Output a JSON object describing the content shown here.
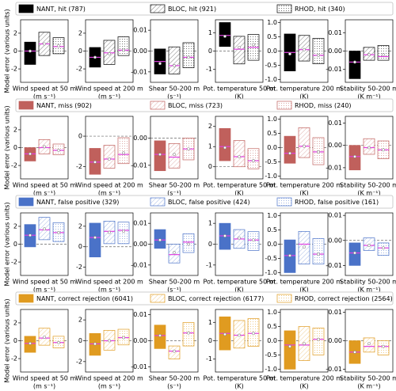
{
  "chart_data": [
    {
      "type": "box",
      "ylabel": "Model error (various units)",
      "zero_line": true,
      "series": [
        {
          "name": "NANT, hit (787)",
          "color": "#000000",
          "hatch": "solid"
        },
        {
          "name": "BLOC, hit (921)",
          "color": "#000000",
          "hatch": "lines"
        },
        {
          "name": "RHOD, hit (340)",
          "color": "#000000",
          "hatch": "dots"
        }
      ],
      "panels": [
        {
          "xlabel": "Wind speed at 50 m",
          "unit": "(m s⁻¹)",
          "ylim": [
            -3.5,
            3.5
          ],
          "yticks": [
            -2,
            0,
            2
          ],
          "q1": [
            -1.5,
            -0.5,
            -0.3
          ],
          "q3": [
            1.0,
            2.1,
            1.5
          ],
          "median": [
            0,
            0.8,
            0.5
          ],
          "mean": [
            0,
            0.8,
            0.6
          ]
        },
        {
          "xlabel": "Wind speed at 200 m",
          "unit": "(m s⁻¹)",
          "ylim": [
            -3.5,
            3.5
          ],
          "yticks": [
            -2,
            0,
            2
          ],
          "q1": [
            -1.8,
            -1.5,
            -0.5
          ],
          "q3": [
            0.4,
            1.2,
            1.6
          ],
          "median": [
            -0.7,
            -0.2,
            0.1
          ],
          "mean": [
            -0.7,
            -0.3,
            0.1
          ]
        },
        {
          "xlabel": "Shear 50-200 m",
          "unit": "(s⁻¹)",
          "ylim": [
            -0.015,
            0.015
          ],
          "yticks": [
            -0.01,
            {
              "value": 0,
              "label": "0.00"
            },
            0.01
          ],
          "q1": [
            -0.011,
            -0.011,
            -0.008
          ],
          "q3": [
            0.001,
            0.002,
            0.004
          ],
          "median": [
            -0.005,
            -0.007,
            -0.003
          ],
          "mean": [
            -0.006,
            -0.007,
            -0.003
          ]
        },
        {
          "xlabel": "Pot. temperature 50 m",
          "unit": "(K)",
          "ylim": [
            -1.7,
            1.7
          ],
          "yticks": [
            -1,
            0,
            1
          ],
          "q1": [
            0.25,
            -0.7,
            -0.5
          ],
          "q3": [
            1.55,
            0.8,
            0.9
          ],
          "median": [
            0.85,
            0.1,
            0.2
          ],
          "mean": [
            0.8,
            0.2,
            0.35
          ]
        },
        {
          "xlabel": "Pot. temperature 200 m",
          "unit": "(K)",
          "ylim": [
            -1.1,
            1.1
          ],
          "yticks": [
            {
              "value": -1,
              "label": "-1.0"
            },
            -0.5,
            {
              "value": 0,
              "label": "0.0"
            },
            0.5,
            {
              "value": 1,
              "label": "1.0"
            }
          ],
          "q1": [
            -0.7,
            -0.35,
            -0.45
          ],
          "q3": [
            0.6,
            0.55,
            0.45
          ],
          "median": [
            -0.05,
            0.05,
            -0.15
          ],
          "mean": [
            -0.1,
            0.05,
            -0.15
          ]
        },
        {
          "xlabel": "Stability 50-200 m",
          "unit": "(K m⁻¹)",
          "ylim": [
            -0.017,
            0.017
          ],
          "yticks": [
            -0.01,
            {
              "value": 0,
              "label": "0.00"
            },
            0.01
          ],
          "q1": [
            -0.015,
            -0.005,
            -0.005
          ],
          "q3": [
            0.0,
            0.002,
            0.003
          ],
          "median": [
            -0.006,
            -0.002,
            -0.003
          ],
          "mean": [
            -0.006,
            -0.002,
            -0.002
          ]
        }
      ]
    },
    {
      "type": "box",
      "ylabel": "Model error (various units)",
      "zero_line": true,
      "series": [
        {
          "name": "NANT, miss (902)",
          "color": "#c0605c",
          "hatch": "solid"
        },
        {
          "name": "BLOC, miss (723)",
          "color": "#c0605c",
          "hatch": "lines"
        },
        {
          "name": "RHOD, miss (240)",
          "color": "#c0605c",
          "hatch": "dots"
        }
      ],
      "panels": [
        {
          "xlabel": "Wind speed at 50 m",
          "unit": "(m s⁻¹)",
          "ylim": [
            -3.5,
            3.5
          ],
          "yticks": [
            -2,
            0,
            2
          ],
          "q1": [
            -1.5,
            -0.7,
            -0.8
          ],
          "q3": [
            0.0,
            0.9,
            0.4
          ],
          "median": [
            -0.7,
            0,
            -0.3
          ],
          "mean": [
            -0.7,
            0.1,
            -0.3
          ]
        },
        {
          "xlabel": "Wind speed at 200 m",
          "unit": "(m s⁻¹)",
          "ylim": [
            -2.8,
            1.3
          ],
          "yticks": [
            -2,
            0
          ],
          "q1": [
            -2.5,
            -2.1,
            -1.8
          ],
          "q3": [
            -0.8,
            -0.6,
            -0.1
          ],
          "median": [
            -1.7,
            -1.5,
            -1.2
          ],
          "mean": [
            -1.7,
            -1.5,
            -1.1
          ]
        },
        {
          "xlabel": "Shear 50-200 m",
          "unit": "(s⁻¹)",
          "ylim": [
            -0.015,
            0.008
          ],
          "yticks": [
            -0.01,
            {
              "value": 0,
              "label": "0.00"
            }
          ],
          "q1": [
            -0.012,
            -0.011,
            -0.008
          ],
          "q3": [
            -0.001,
            -0.002,
            0.0
          ],
          "median": [
            -0.006,
            -0.007,
            -0.004
          ],
          "mean": [
            -0.006,
            -0.006,
            -0.004
          ]
        },
        {
          "xlabel": "Pot. temperature 50 m",
          "unit": "(K)",
          "ylim": [
            -0.6,
            2.5
          ],
          "yticks": [
            0,
            1,
            2
          ],
          "q1": [
            0.3,
            0.0,
            -0.1
          ],
          "q3": [
            1.9,
            1.3,
            0.9
          ],
          "median": [
            1.0,
            0.5,
            0.3
          ],
          "mean": [
            0.95,
            0.5,
            0.3
          ]
        },
        {
          "xlabel": "Pot. temperature 200 m",
          "unit": "(K)",
          "ylim": [
            -1.1,
            1.1
          ],
          "yticks": [
            {
              "value": -1,
              "label": "-1.0"
            },
            -0.5,
            {
              "value": 0,
              "label": "0.0"
            },
            0.5,
            {
              "value": 1,
              "label": "1.0"
            }
          ],
          "q1": [
            -0.55,
            -0.35,
            -0.6
          ],
          "q3": [
            0.4,
            0.7,
            0.35
          ],
          "median": [
            -0.2,
            0.05,
            -0.15
          ],
          "mean": [
            -0.2,
            0.05,
            -0.15
          ]
        },
        {
          "xlabel": "Stability 50-200 m",
          "unit": "(K m⁻¹)",
          "ylim": [
            -0.015,
            0.013
          ],
          "yticks": [
            -0.01,
            {
              "value": 0,
              "label": "0.00"
            },
            0.01
          ],
          "q1": [
            -0.011,
            -0.004,
            -0.006
          ],
          "q3": [
            0.0,
            0.003,
            0.002
          ],
          "median": [
            -0.005,
            -0.001,
            -0.002
          ],
          "mean": [
            -0.005,
            -0.001,
            -0.002
          ]
        }
      ]
    },
    {
      "type": "box",
      "ylabel": "Model error (various units)",
      "zero_line": true,
      "series": [
        {
          "name": "NANT, false positive (329)",
          "color": "#4a72c8",
          "hatch": "solid"
        },
        {
          "name": "BLOC, false positive (424)",
          "color": "#4a72c8",
          "hatch": "lines"
        },
        {
          "name": "RHOD, false positive (161)",
          "color": "#4a72c8",
          "hatch": "dots"
        }
      ],
      "panels": [
        {
          "xlabel": "Wind speed at 50 m",
          "unit": "(m s⁻¹)",
          "ylim": [
            -3.5,
            3.5
          ],
          "yticks": [
            -2,
            0,
            2
          ],
          "q1": [
            -0.3,
            0.5,
            0.3
          ],
          "q3": [
            2.2,
            3.0,
            2.4
          ],
          "median": [
            1.0,
            1.6,
            1.3
          ],
          "mean": [
            1.0,
            1.7,
            1.3
          ]
        },
        {
          "xlabel": "Wind speed at 200 m",
          "unit": "(m s⁻¹)",
          "ylim": [
            -2.8,
            3.3
          ],
          "yticks": [
            -2,
            0,
            2
          ],
          "q1": [
            -1.0,
            0.3,
            0.3
          ],
          "q3": [
            2.3,
            2.5,
            2.4
          ],
          "median": [
            0.9,
            1.5,
            1.6
          ],
          "mean": [
            0.9,
            1.4,
            1.5
          ]
        },
        {
          "xlabel": "Shear 50-200 m",
          "unit": "(s⁻¹)",
          "ylim": [
            -0.015,
            0.015
          ],
          "yticks": [
            -0.01,
            {
              "value": 0,
              "label": "0.00"
            },
            0.01
          ],
          "q1": [
            -0.002,
            -0.009,
            -0.004
          ],
          "q3": [
            0.007,
            0.0,
            0.005
          ],
          "median": [
            0.002,
            -0.005,
            0.001
          ],
          "mean": [
            0.002,
            -0.004,
            0.0
          ]
        },
        {
          "xlabel": "Pot. temperature 50 m",
          "unit": "(K)",
          "ylim": [
            -1.5,
            1.5
          ],
          "yticks": [
            -1,
            0,
            1
          ],
          "q1": [
            -0.25,
            -0.2,
            -0.3
          ],
          "q3": [
            1.0,
            0.7,
            0.6
          ],
          "median": [
            0.4,
            0.25,
            0.2
          ],
          "mean": [
            0.4,
            0.3,
            0.2
          ]
        },
        {
          "xlabel": "Pot. temperature 200 m",
          "unit": "(K)",
          "ylim": [
            -1.1,
            1.1
          ],
          "yticks": [
            {
              "value": -1,
              "label": "-1.0"
            },
            -0.5,
            {
              "value": 0,
              "label": "0.0"
            },
            0.5,
            {
              "value": 1,
              "label": "1.0"
            }
          ],
          "q1": [
            -1.0,
            -0.7,
            -0.7
          ],
          "q3": [
            0.15,
            0.45,
            0.2
          ],
          "median": [
            -0.4,
            0.0,
            -0.35
          ],
          "mean": [
            -0.4,
            -0.1,
            -0.35
          ]
        },
        {
          "xlabel": "Stability 50-200 m",
          "unit": "(K m⁻¹)",
          "ylim": [
            -0.014,
            0.011
          ],
          "yticks": [
            -0.01,
            {
              "value": 0,
              "label": "0.00"
            },
            0.01
          ],
          "q1": [
            -0.01,
            -0.004,
            -0.006
          ],
          "q3": [
            -0.001,
            0.001,
            -0.001
          ],
          "median": [
            -0.005,
            -0.002,
            -0.003
          ],
          "mean": [
            -0.005,
            -0.002,
            -0.003
          ]
        }
      ]
    },
    {
      "type": "box",
      "ylabel": "Model error (various units)",
      "zero_line": true,
      "series": [
        {
          "name": "NANT, correct rejection (6041)",
          "color": "#e09b20",
          "hatch": "solid"
        },
        {
          "name": "BLOC, correct rejection (6177)",
          "color": "#e09b20",
          "hatch": "lines"
        },
        {
          "name": "RHOD, correct rejection (2564)",
          "color": "#e09b20",
          "hatch": "dots"
        }
      ],
      "panels": [
        {
          "xlabel": "Wind speed at 50 m",
          "unit": "(m s⁻¹)",
          "ylim": [
            -3.5,
            3.5
          ],
          "yticks": [
            -2,
            0,
            2
          ],
          "q1": [
            -1.3,
            -0.5,
            -0.8
          ],
          "q3": [
            0.5,
            1.4,
            0.5
          ],
          "median": [
            -0.3,
            0.3,
            -0.2
          ],
          "mean": [
            -0.3,
            0.4,
            -0.2
          ]
        },
        {
          "xlabel": "Wind speed at 200 m",
          "unit": "(m s⁻¹)",
          "ylim": [
            -3,
            3
          ],
          "yticks": [
            -2,
            0,
            2
          ],
          "q1": [
            -1.4,
            -0.9,
            -0.4
          ],
          "q3": [
            0.7,
            1.0,
            1.1
          ],
          "median": [
            -0.3,
            0.0,
            0.3
          ],
          "mean": [
            -0.3,
            0.0,
            0.3
          ]
        },
        {
          "xlabel": "Shear 50-200 m",
          "unit": "(s⁻¹)",
          "ylim": [
            -0.012,
            0.012
          ],
          "yticks": [
            -0.01,
            {
              "value": 0,
              "label": "0.00"
            },
            0.01
          ],
          "q1": [
            -0.003,
            -0.007,
            -0.002
          ],
          "q3": [
            0.006,
            -0.002,
            0.007
          ],
          "median": [
            0.002,
            -0.004,
            0.003
          ],
          "mean": [
            0.002,
            -0.004,
            0.003
          ]
        },
        {
          "xlabel": "Pot. temperature 50 m",
          "unit": "(K)",
          "ylim": [
            -1.7,
            1.7
          ],
          "yticks": [
            -1,
            0,
            1
          ],
          "q1": [
            -0.5,
            -0.4,
            -0.3
          ],
          "q3": [
            1.3,
            1.1,
            1.2
          ],
          "median": [
            0.4,
            0.3,
            0.4
          ],
          "mean": [
            0.35,
            0.3,
            0.4
          ]
        },
        {
          "xlabel": "Pot. temperature 200 m",
          "unit": "(K)",
          "ylim": [
            -1.1,
            1.1
          ],
          "yticks": [
            {
              "value": -1,
              "label": "-1.0"
            },
            -0.5,
            {
              "value": 0,
              "label": "0.0"
            },
            0.5,
            {
              "value": 1,
              "label": "1.0"
            }
          ],
          "q1": [
            -1.0,
            -0.7,
            -0.5
          ],
          "q3": [
            0.35,
            0.5,
            0.45
          ],
          "median": [
            -0.15,
            -0.15,
            0.05
          ],
          "mean": [
            -0.2,
            -0.1,
            0.05
          ]
        },
        {
          "xlabel": "Stability 50-200 m",
          "unit": "(K m⁻¹)",
          "ylim": [
            -0.011,
            0.011
          ],
          "yticks": [
            -0.01,
            {
              "value": 0,
              "label": "0.00"
            },
            0.01
          ],
          "q1": [
            -0.008,
            -0.004,
            -0.005
          ],
          "q3": [
            0.0,
            0.001,
            0.0
          ],
          "median": [
            -0.004,
            -0.002,
            -0.002
          ],
          "mean": [
            -0.004,
            -0.001,
            -0.002
          ]
        }
      ]
    }
  ]
}
